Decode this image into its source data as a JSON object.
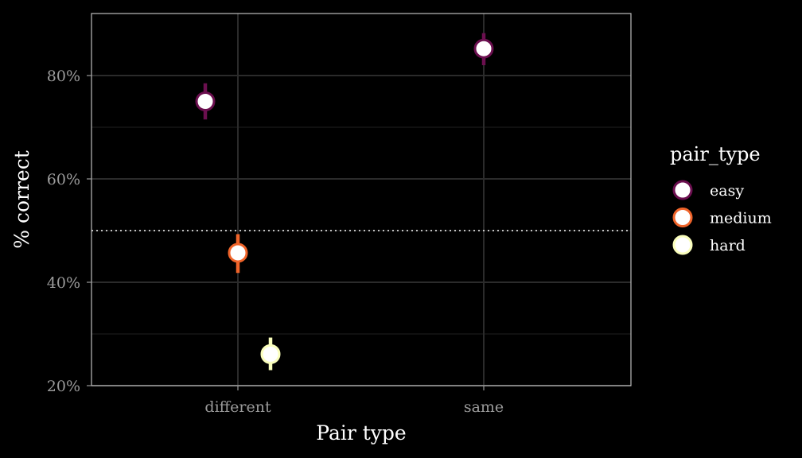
{
  "chart_data": {
    "type": "scatter",
    "title": "",
    "xlabel": "Pair type",
    "ylabel": "% correct",
    "categories": [
      "different",
      "same"
    ],
    "yticks": [
      "20%",
      "40%",
      "60%",
      "80%"
    ],
    "ylim": [
      0.2,
      0.92
    ],
    "reference_line": {
      "y": 0.5,
      "style": "dotted"
    },
    "grid": true,
    "legend": {
      "title": "pair_type",
      "position": "right"
    },
    "series": [
      {
        "name": "easy",
        "color": "#6b0f4f",
        "points": [
          {
            "x": "different",
            "y": 0.75,
            "lo": 0.715,
            "hi": 0.785
          },
          {
            "x": "same",
            "y": 0.852,
            "lo": 0.82,
            "hi": 0.882
          }
        ]
      },
      {
        "name": "medium",
        "color": "#f0642a",
        "points": [
          {
            "x": "different",
            "y": 0.457,
            "lo": 0.418,
            "hi": 0.493
          }
        ]
      },
      {
        "name": "hard",
        "color": "#fafebc",
        "points": [
          {
            "x": "different",
            "y": 0.261,
            "lo": 0.23,
            "hi": 0.293
          }
        ]
      }
    ]
  }
}
